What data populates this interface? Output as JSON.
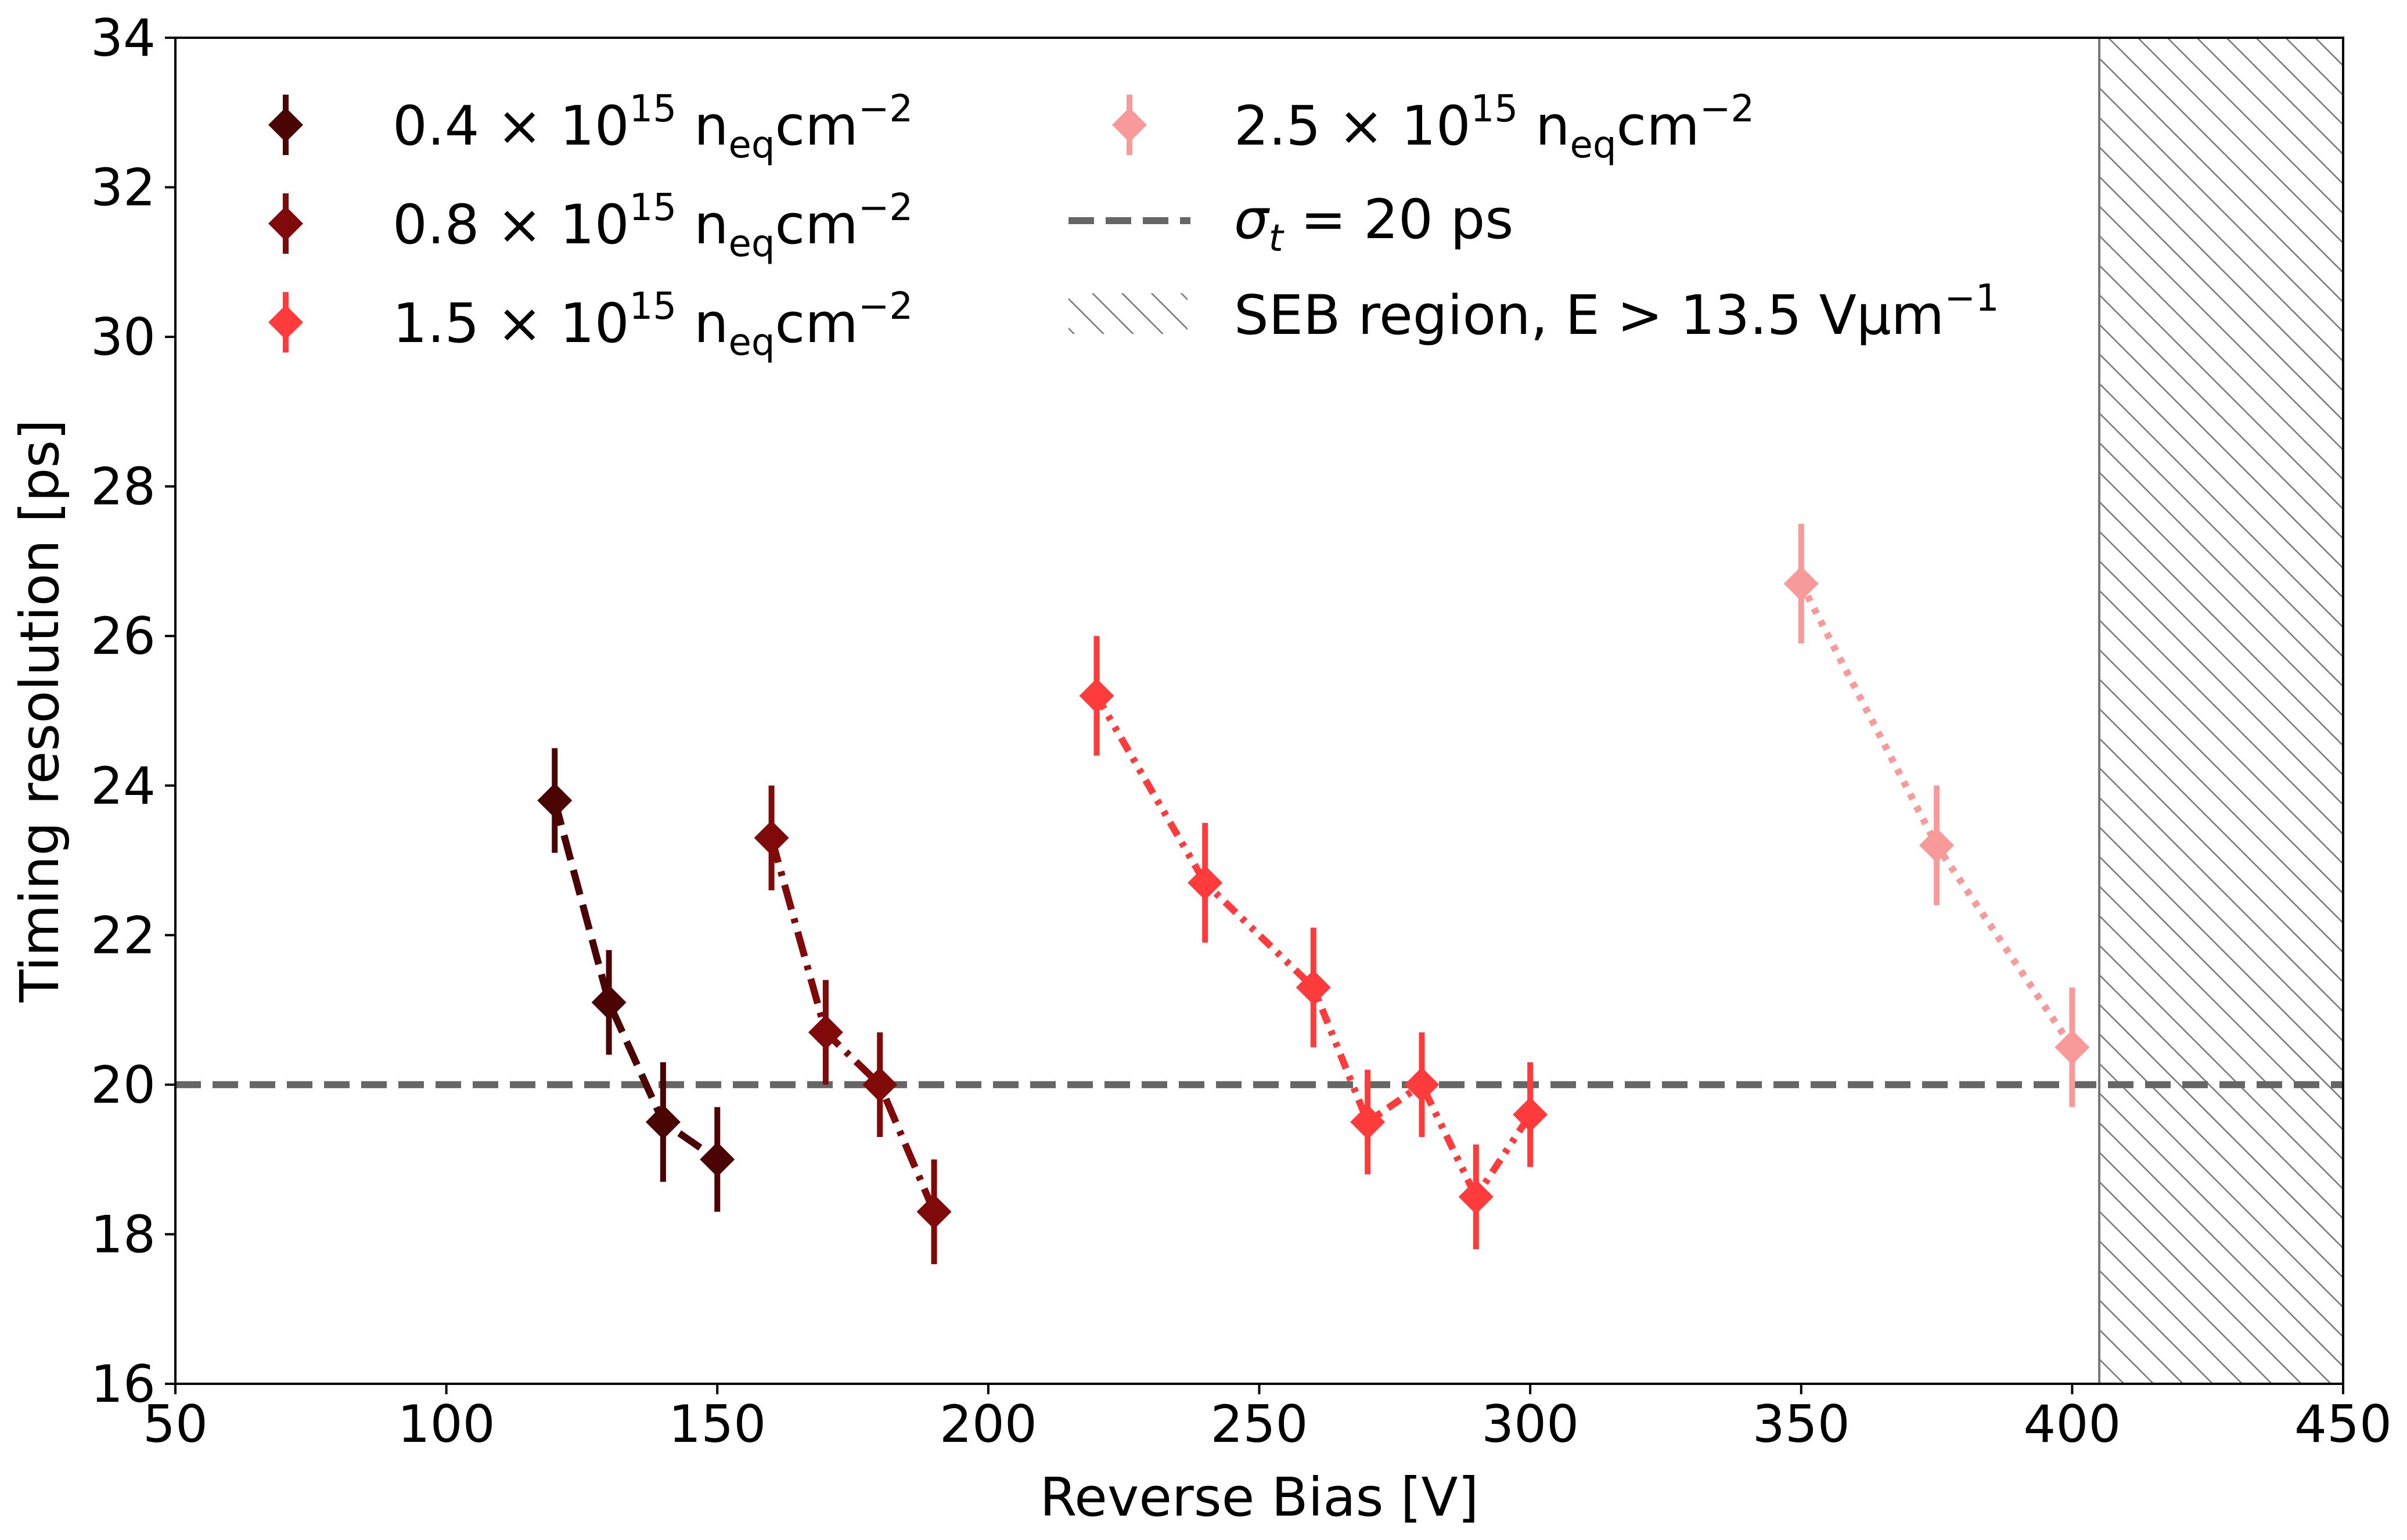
{
  "chart_data": {
    "type": "scatter",
    "xlabel": "Reverse Bias [V]",
    "ylabel": "Timing resolution [ps]",
    "xlim": [
      50,
      450
    ],
    "ylim": [
      16,
      34
    ],
    "xticks": [
      50,
      100,
      150,
      200,
      250,
      300,
      350,
      400,
      450
    ],
    "yticks": [
      16,
      18,
      20,
      22,
      24,
      26,
      28,
      30,
      32,
      34
    ],
    "grid": false,
    "legend_position": "top",
    "series": [
      {
        "name": "0.4 × 10^15 neq cm^-2",
        "legend": {
          "coef": "0.4 × 10",
          "exp": "15",
          "n": "n",
          "sub": "eq",
          "unit": "cm",
          "unit_exp": "−2"
        },
        "color": "#4a0404",
        "line_style": "dashed",
        "x": [
          120,
          130,
          140,
          150
        ],
        "y": [
          23.8,
          21.1,
          19.5,
          19.0
        ],
        "err": [
          0.7,
          0.7,
          0.8,
          0.7
        ]
      },
      {
        "name": "0.8 × 10^15 neq cm^-2",
        "legend": {
          "coef": "0.8 × 10",
          "exp": "15",
          "n": "n",
          "sub": "eq",
          "unit": "cm",
          "unit_exp": "−2"
        },
        "color": "#800a0a",
        "line_style": "dashdot",
        "x": [
          160,
          170,
          180,
          190
        ],
        "y": [
          23.3,
          20.7,
          20.0,
          18.3
        ],
        "err": [
          0.7,
          0.7,
          0.7,
          0.7
        ]
      },
      {
        "name": "1.5 × 10^15 neq cm^-2",
        "legend": {
          "coef": "1.5 × 10",
          "exp": "15",
          "n": "n",
          "sub": "eq",
          "unit": "cm",
          "unit_exp": "−2"
        },
        "color": "#ff3b3b",
        "line_style": "dashdotdot",
        "x": [
          220,
          240,
          260,
          270,
          280,
          290,
          300
        ],
        "y": [
          25.2,
          22.7,
          21.3,
          19.5,
          20.0,
          18.5,
          19.6
        ],
        "err": [
          0.8,
          0.8,
          0.8,
          0.7,
          0.7,
          0.7,
          0.7
        ]
      },
      {
        "name": "2.5 × 10^15 neq cm^-2",
        "legend": {
          "coef": "2.5 × 10",
          "exp": "15",
          "n": "n",
          "sub": "eq",
          "unit": "cm",
          "unit_exp": "−2"
        },
        "color": "#f99a9a",
        "line_style": "dotted",
        "x": [
          350,
          375,
          400
        ],
        "y": [
          26.7,
          23.2,
          20.5
        ],
        "err": [
          0.8,
          0.8,
          0.8
        ]
      }
    ],
    "reference_line": {
      "y": 20,
      "color": "#666666",
      "legend": {
        "sigma": "σ",
        "sub": "t",
        "rest": " = 20 ps"
      }
    },
    "hatched_region": {
      "x_start": 405,
      "x_end": 450,
      "color": "#777777",
      "legend": {
        "text": "SEB region, E > 13.5 Vμm",
        "sup": "−1"
      }
    }
  }
}
